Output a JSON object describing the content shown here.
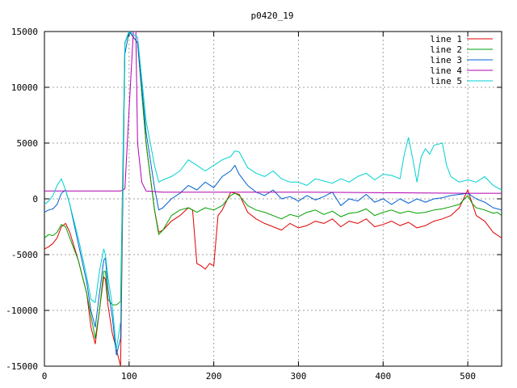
{
  "chart_data": {
    "type": "line",
    "title": "p0420_19",
    "xlabel": "",
    "ylabel": "",
    "xlim": [
      0,
      540
    ],
    "ylim": [
      -15000,
      15000
    ],
    "x_ticks": [
      0,
      100,
      200,
      300,
      400,
      500
    ],
    "y_ticks": [
      -15000,
      -10000,
      -5000,
      0,
      5000,
      10000,
      15000
    ],
    "x_tick_labels": [
      "0",
      "100",
      "200",
      "300",
      "400",
      "500"
    ],
    "y_tick_labels": [
      "-15000",
      "-10000",
      "-5000",
      "0",
      "5000",
      "10000",
      "15000"
    ],
    "grid": true,
    "legend_position": "top-right",
    "series": [
      {
        "name": "line 1",
        "color": "#e00000",
        "x": [
          0,
          5,
          10,
          15,
          20,
          25,
          30,
          40,
          50,
          55,
          60,
          65,
          70,
          72,
          75,
          80,
          85,
          90,
          95,
          100,
          110,
          120,
          130,
          135,
          140,
          150,
          160,
          170,
          175,
          180,
          185,
          190,
          195,
          200,
          205,
          210,
          215,
          220,
          225,
          230,
          240,
          250,
          260,
          270,
          280,
          290,
          300,
          310,
          320,
          330,
          340,
          350,
          360,
          370,
          380,
          390,
          400,
          410,
          420,
          430,
          440,
          450,
          460,
          470,
          480,
          490,
          500,
          510,
          520,
          530,
          540
        ],
        "values": [
          -4500,
          -4300,
          -4000,
          -3500,
          -2500,
          -2200,
          -3000,
          -5500,
          -8500,
          -11500,
          -13000,
          -10000,
          -7000,
          -7200,
          -9500,
          -12000,
          -13500,
          -15000,
          14000,
          15000,
          14000,
          5000,
          -1000,
          -3000,
          -2800,
          -2000,
          -1500,
          -800,
          -1000,
          -5800,
          -6000,
          -6300,
          -5800,
          -6000,
          -1500,
          -1000,
          -200,
          600,
          500,
          400,
          -1200,
          -1800,
          -2200,
          -2500,
          -2800,
          -2200,
          -2600,
          -2400,
          -2000,
          -2200,
          -1800,
          -2500,
          -2000,
          -2200,
          -1800,
          -2500,
          -2300,
          -2000,
          -2400,
          -2100,
          -2600,
          -2400,
          -2000,
          -1800,
          -1500,
          -800,
          800,
          -1500,
          -2000,
          -3000,
          -3500
        ]
      },
      {
        "name": "line 2",
        "color": "#00a000",
        "x": [
          0,
          5,
          10,
          15,
          20,
          25,
          30,
          40,
          50,
          55,
          60,
          65,
          70,
          72,
          75,
          80,
          85,
          90,
          95,
          100,
          110,
          120,
          130,
          135,
          140,
          150,
          160,
          170,
          180,
          190,
          200,
          210,
          220,
          225,
          230,
          240,
          250,
          260,
          270,
          280,
          290,
          300,
          310,
          320,
          330,
          340,
          350,
          360,
          370,
          380,
          390,
          400,
          410,
          420,
          430,
          440,
          450,
          460,
          470,
          480,
          490,
          500,
          505,
          510,
          520,
          530,
          535,
          540
        ],
        "values": [
          -3500,
          -3200,
          -3300,
          -3000,
          -2300,
          -2500,
          -3500,
          -5500,
          -8500,
          -10500,
          -12500,
          -10000,
          -6500,
          -6500,
          -9000,
          -9500,
          -9500,
          -9200,
          14000,
          15000,
          14000,
          5000,
          -1000,
          -3200,
          -2800,
          -1500,
          -1000,
          -800,
          -1200,
          -800,
          -1000,
          -600,
          300,
          500,
          300,
          -600,
          -1000,
          -1200,
          -1500,
          -1800,
          -1400,
          -1600,
          -1200,
          -1000,
          -1400,
          -1100,
          -1600,
          -1300,
          -1200,
          -900,
          -1500,
          -1200,
          -1000,
          -1300,
          -1100,
          -1300,
          -1200,
          -1000,
          -900,
          -700,
          -500,
          300,
          -400,
          -800,
          -1000,
          -1300,
          -1200,
          -1500
        ]
      },
      {
        "name": "line 3",
        "color": "#0060d0",
        "x": [
          0,
          5,
          10,
          15,
          20,
          25,
          30,
          40,
          50,
          55,
          60,
          65,
          70,
          72,
          75,
          80,
          85,
          90,
          95,
          100,
          110,
          120,
          130,
          135,
          140,
          150,
          160,
          170,
          180,
          190,
          200,
          210,
          220,
          225,
          230,
          240,
          250,
          260,
          270,
          280,
          290,
          300,
          310,
          320,
          330,
          340,
          350,
          360,
          370,
          380,
          390,
          400,
          410,
          420,
          430,
          440,
          450,
          460,
          470,
          480,
          490,
          500,
          510,
          520,
          530,
          540
        ],
        "values": [
          -1200,
          -1000,
          -900,
          -500,
          500,
          800,
          -500,
          -4000,
          -7500,
          -10000,
          -11500,
          -8500,
          -5500,
          -5300,
          -8000,
          -10500,
          -14000,
          -12500,
          13000,
          15000,
          14000,
          6000,
          1000,
          -1000,
          -800,
          0,
          500,
          1200,
          800,
          1500,
          1000,
          2000,
          2500,
          3000,
          2200,
          1200,
          600,
          300,
          800,
          0,
          200,
          -200,
          300,
          -100,
          200,
          600,
          -600,
          0,
          -200,
          400,
          -300,
          0,
          -500,
          0,
          -400,
          0,
          -300,
          0,
          100,
          300,
          400,
          500,
          0,
          -300,
          -800,
          -1000
        ]
      },
      {
        "name": "line 4",
        "color": "#b000b0",
        "x": [
          0,
          20,
          40,
          60,
          80,
          90,
          95,
          100,
          105,
          108,
          110,
          115,
          120,
          140,
          200,
          300,
          400,
          500,
          540
        ],
        "values": [
          700,
          700,
          700,
          700,
          700,
          700,
          900,
          8000,
          15000,
          15000,
          5000,
          1500,
          700,
          600,
          600,
          600,
          550,
          500,
          500
        ]
      },
      {
        "name": "line 5",
        "color": "#00d0d0",
        "x": [
          0,
          5,
          10,
          15,
          20,
          25,
          30,
          40,
          50,
          55,
          60,
          65,
          70,
          72,
          75,
          80,
          85,
          90,
          95,
          100,
          110,
          120,
          130,
          135,
          140,
          150,
          160,
          170,
          180,
          190,
          200,
          210,
          220,
          225,
          230,
          240,
          250,
          260,
          270,
          280,
          290,
          300,
          310,
          320,
          330,
          340,
          350,
          360,
          370,
          380,
          390,
          400,
          410,
          420,
          425,
          430,
          435,
          440,
          445,
          450,
          455,
          460,
          470,
          475,
          480,
          490,
          500,
          510,
          520,
          530,
          540
        ],
        "values": [
          -500,
          -200,
          300,
          1200,
          1800,
          800,
          -500,
          -3500,
          -7000,
          -9000,
          -9300,
          -6500,
          -4500,
          -5000,
          -7000,
          -9500,
          -13500,
          -11000,
          14000,
          15000,
          14500,
          7000,
          3000,
          1500,
          1700,
          2000,
          2500,
          3500,
          3000,
          2500,
          3000,
          3500,
          3800,
          4300,
          4200,
          2800,
          2300,
          2000,
          2500,
          1800,
          1500,
          1500,
          1200,
          1800,
          1600,
          1400,
          1800,
          1500,
          2000,
          2300,
          1700,
          2200,
          2100,
          1800,
          4000,
          5500,
          3600,
          1500,
          3800,
          4500,
          4000,
          4800,
          5000,
          3000,
          2000,
          1500,
          1700,
          1500,
          2000,
          1200,
          800
        ]
      }
    ]
  }
}
